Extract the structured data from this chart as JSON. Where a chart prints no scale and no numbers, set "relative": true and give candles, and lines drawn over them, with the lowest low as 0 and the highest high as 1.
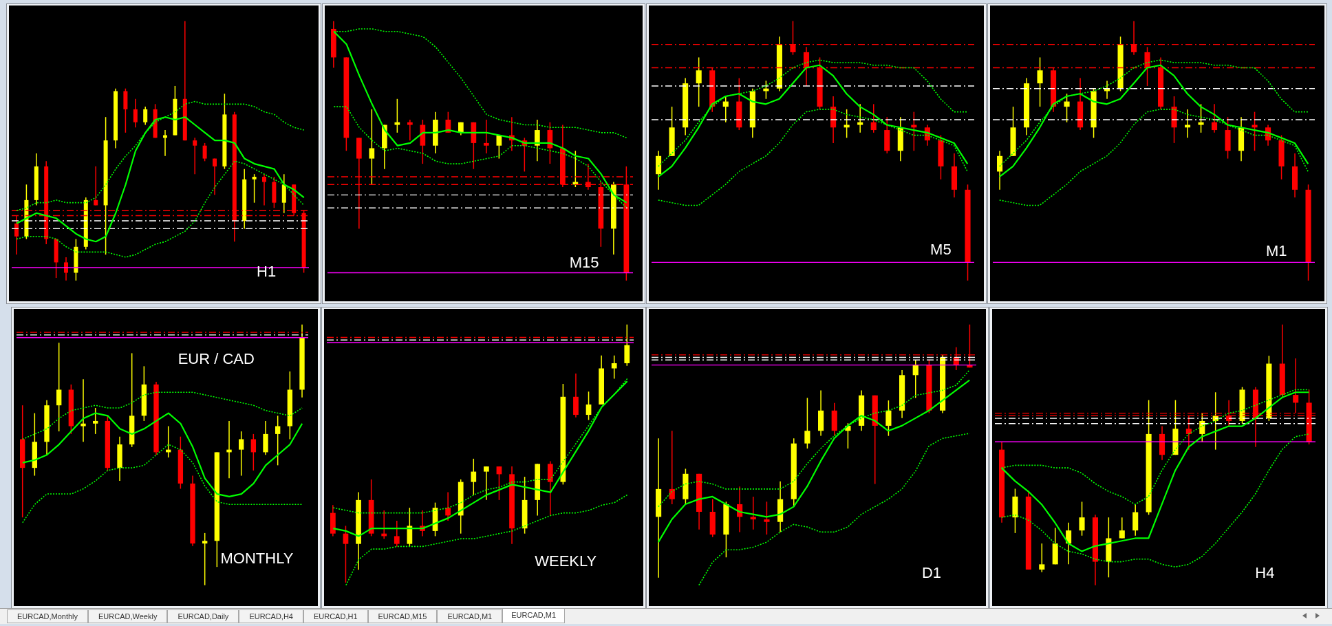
{
  "chart_data": [
    {
      "type": "candlestick",
      "title": "H1",
      "relative": true,
      "tick_labels": false,
      "categories": [
        null,
        null,
        null,
        null,
        null,
        null,
        null,
        null,
        null,
        null,
        null,
        null,
        null,
        null,
        null,
        null,
        null,
        null,
        null,
        null,
        null,
        null,
        null,
        null,
        null,
        null,
        null,
        null,
        null,
        null
      ],
      "ohlc": [
        [
          0.22,
          0.25,
          0.1,
          0.17
        ],
        [
          0.17,
          0.37,
          0.16,
          0.31
        ],
        [
          0.31,
          0.49,
          0.29,
          0.44
        ],
        [
          0.44,
          0.46,
          0.14,
          0.16
        ],
        [
          0.16,
          0.16,
          0.01,
          0.07
        ],
        [
          0.07,
          0.09,
          0,
          0.03
        ],
        [
          0.03,
          0.16,
          0,
          0.13
        ],
        [
          0.13,
          0.32,
          0.12,
          0.31
        ],
        [
          0.31,
          0.44,
          0.29,
          0.29
        ],
        [
          0.29,
          0.63,
          0.1,
          0.54
        ],
        [
          0.54,
          0.74,
          0.51,
          0.73
        ],
        [
          0.73,
          0.74,
          0.57,
          0.66
        ],
        [
          0.66,
          0.7,
          0.59,
          0.61
        ],
        [
          0.61,
          0.67,
          0.6,
          0.66
        ],
        [
          0.66,
          0.68,
          0.55,
          0.55
        ],
        [
          0.55,
          0.58,
          0.48,
          0.56
        ],
        [
          0.56,
          0.75,
          0.56,
          0.7
        ],
        [
          0.7,
          1,
          0.54,
          0.54
        ],
        [
          0.54,
          0.55,
          0.41,
          0.52
        ],
        [
          0.52,
          0.53,
          0.46,
          0.47
        ],
        [
          0.47,
          0.47,
          0.33,
          0.44
        ],
        [
          0.44,
          0.72,
          0.43,
          0.64
        ],
        [
          0.64,
          0.65,
          0.15,
          0.23
        ],
        [
          0.23,
          0.43,
          0.2,
          0.39
        ],
        [
          0.39,
          0.41,
          0.3,
          0.4
        ],
        [
          0.4,
          0.41,
          0.29,
          0.38
        ],
        [
          0.38,
          0.4,
          0.28,
          0.3
        ],
        [
          0.3,
          0.41,
          0.26,
          0.37
        ],
        [
          0.37,
          0.37,
          0.25,
          0.26
        ],
        [
          0.26,
          0.27,
          0.03,
          0.05
        ]
      ],
      "series": [
        {
          "type": "line",
          "color": "#00ff00",
          "values": [
            0.22,
            0.24,
            0.26,
            0.25,
            0.24,
            0.21,
            0.18,
            0.16,
            0.15,
            0.17,
            0.26,
            0.37,
            0.5,
            0.57,
            0.62,
            0.63,
            0.62,
            0.63,
            0.6,
            0.57,
            0.54,
            0.54,
            0.53,
            0.47,
            0.45,
            0.44,
            0.43,
            0.37,
            0.35,
            0.32
          ]
        },
        {
          "type": "line",
          "color": "#00ff00",
          "line_style": "dotted",
          "values": [
            0.27,
            0.28,
            0.3,
            0.3,
            0.31,
            0.3,
            0.3,
            0.3,
            0.32,
            0.37,
            0.43,
            0.48,
            0.52,
            0.57,
            0.61,
            0.63,
            0.65,
            0.68,
            0.69,
            0.68,
            0.68,
            0.68,
            0.68,
            0.68,
            0.67,
            0.65,
            0.64,
            0.61,
            0.59,
            0.58
          ]
        },
        {
          "type": "line",
          "color": "#00ff00",
          "line_style": "dotted",
          "values": [
            0.16,
            0.17,
            0.17,
            0.17,
            0.16,
            0.13,
            0.11,
            0.11,
            0.11,
            0.11,
            0.1,
            0.09,
            0.1,
            0.12,
            0.14,
            0.15,
            0.17,
            0.19,
            0.23,
            0.3,
            0.36,
            0.41,
            0.46,
            0.45,
            0.43,
            0.41,
            0.39,
            0.37,
            0.33,
            0.29
          ]
        }
      ],
      "ref_lines": [
        {
          "axis": "y",
          "value": 0.27,
          "color": "#ff0000",
          "line_style": "dashdot"
        },
        {
          "axis": "y",
          "value": 0.25,
          "color": "#ff0000",
          "line_style": "dashdot"
        },
        {
          "axis": "y",
          "value": 0.23,
          "color": "#ffffff",
          "line_style": "dashdot"
        },
        {
          "axis": "y",
          "value": 0.2,
          "color": "#ffffff",
          "line_style": "dashdot"
        },
        {
          "axis": "y",
          "value": 0.05,
          "color": "#ff00ff",
          "line_style": "solid"
        }
      ]
    },
    {
      "type": "candlestick",
      "title": "M15",
      "relative": true,
      "tick_labels": false,
      "categories": [
        null,
        null,
        null,
        null,
        null,
        null,
        null,
        null,
        null,
        null,
        null,
        null,
        null,
        null,
        null,
        null,
        null,
        null,
        null,
        null,
        null,
        null,
        null,
        null
      ],
      "ohlc": [
        [
          0.97,
          1,
          0.82,
          0.86
        ],
        [
          0.86,
          0.86,
          0.5,
          0.55
        ],
        [
          0.55,
          0.55,
          0.2,
          0.47
        ],
        [
          0.47,
          0.66,
          0.37,
          0.51
        ],
        [
          0.51,
          0.6,
          0.43,
          0.6
        ],
        [
          0.6,
          0.7,
          0.57,
          0.61
        ],
        [
          0.61,
          0.62,
          0.54,
          0.6
        ],
        [
          0.6,
          0.62,
          0.45,
          0.52
        ],
        [
          0.52,
          0.65,
          0.49,
          0.62
        ],
        [
          0.62,
          0.65,
          0.57,
          0.57
        ],
        [
          0.57,
          0.61,
          0.56,
          0.61
        ],
        [
          0.61,
          0.61,
          0.43,
          0.53
        ],
        [
          0.53,
          0.62,
          0.49,
          0.52
        ],
        [
          0.52,
          0.56,
          0.47,
          0.56
        ],
        [
          0.56,
          0.63,
          0.5,
          0.54
        ],
        [
          0.54,
          0.55,
          0.42,
          0.52
        ],
        [
          0.52,
          0.62,
          0.46,
          0.58
        ],
        [
          0.58,
          0.61,
          0.45,
          0.51
        ],
        [
          0.51,
          0.6,
          0.36,
          0.37
        ],
        [
          0.37,
          0.5,
          0.36,
          0.38
        ],
        [
          0.38,
          0.45,
          0.35,
          0.36
        ],
        [
          0.36,
          0.38,
          0.13,
          0.2
        ],
        [
          0.2,
          0.38,
          0.1,
          0.37
        ],
        [
          0.37,
          0.44,
          0,
          0.03
        ]
      ],
      "series": [
        {
          "type": "line",
          "color": "#00ff00",
          "values": [
            0.96,
            0.91,
            0.79,
            0.68,
            0.58,
            0.52,
            0.53,
            0.57,
            0.57,
            0.58,
            0.57,
            0.57,
            0.57,
            0.56,
            0.55,
            0.53,
            0.53,
            0.53,
            0.51,
            0.48,
            0.47,
            0.41,
            0.33,
            0.3
          ]
        },
        {
          "type": "line",
          "color": "#00ff00",
          "line_style": "dotted",
          "values": [
            0.96,
            0.96,
            0.97,
            0.97,
            0.96,
            0.96,
            0.95,
            0.94,
            0.9,
            0.84,
            0.78,
            0.71,
            0.64,
            0.62,
            0.61,
            0.6,
            0.6,
            0.59,
            0.59,
            0.59,
            0.58,
            0.57,
            0.57,
            0.55
          ]
        },
        {
          "type": "line",
          "color": "#00ff00",
          "line_style": "dotted",
          "values": [
            0.67,
            0.67,
            0.59,
            0.54,
            0.5,
            0.51,
            0.5,
            0.49,
            0.46,
            0.45,
            0.45,
            0.46,
            0.47,
            0.48,
            0.52,
            0.52,
            0.51,
            0.5,
            0.49,
            0.47,
            0.44,
            0.38,
            0.33,
            0.28
          ]
        }
      ],
      "ref_lines": [
        {
          "axis": "y",
          "value": 0.4,
          "color": "#ff0000",
          "line_style": "dashdot"
        },
        {
          "axis": "y",
          "value": 0.37,
          "color": "#ff0000",
          "line_style": "dashdot"
        },
        {
          "axis": "y",
          "value": 0.33,
          "color": "#ffffff",
          "line_style": "dashdot"
        },
        {
          "axis": "y",
          "value": 0.28,
          "color": "#ffffff",
          "line_style": "dashdot"
        },
        {
          "axis": "y",
          "value": 0.03,
          "color": "#ff00ff",
          "line_style": "solid"
        }
      ]
    },
    {
      "type": "candlestick",
      "title": "M5",
      "relative": true,
      "tick_labels": false,
      "categories": [
        null,
        null,
        null,
        null,
        null,
        null,
        null,
        null,
        null,
        null,
        null,
        null,
        null,
        null,
        null,
        null,
        null,
        null,
        null,
        null,
        null,
        null,
        null,
        null
      ],
      "ohlc": [
        [
          0.41,
          0.5,
          0.35,
          0.48
        ],
        [
          0.48,
          0.67,
          0.48,
          0.59
        ],
        [
          0.59,
          0.78,
          0.56,
          0.76
        ],
        [
          0.76,
          0.86,
          0.67,
          0.81
        ],
        [
          0.81,
          0.82,
          0.65,
          0.67
        ],
        [
          0.67,
          0.71,
          0.61,
          0.69
        ],
        [
          0.69,
          0.78,
          0.58,
          0.59
        ],
        [
          0.59,
          0.74,
          0.55,
          0.73
        ],
        [
          0.73,
          0.77,
          0.7,
          0.74
        ],
        [
          0.74,
          0.94,
          0.73,
          0.91
        ],
        [
          0.91,
          1,
          0.87,
          0.88
        ],
        [
          0.88,
          0.9,
          0.75,
          0.82
        ],
        [
          0.82,
          0.86,
          0.66,
          0.67
        ],
        [
          0.67,
          0.71,
          0.53,
          0.59
        ],
        [
          0.59,
          0.66,
          0.55,
          0.6
        ],
        [
          0.6,
          0.68,
          0.57,
          0.61
        ],
        [
          0.61,
          0.68,
          0.57,
          0.58
        ],
        [
          0.58,
          0.63,
          0.49,
          0.5
        ],
        [
          0.5,
          0.63,
          0.46,
          0.59
        ],
        [
          0.6,
          0.65,
          0.5,
          0.59
        ],
        [
          0.59,
          0.6,
          0.52,
          0.54
        ],
        [
          0.54,
          0.56,
          0.39,
          0.44
        ],
        [
          0.44,
          0.49,
          0.32,
          0.35
        ],
        [
          0.35,
          0.37,
          0,
          0.07
        ]
      ],
      "series": [
        {
          "type": "line",
          "color": "#00ff00",
          "values": [
            0.4,
            0.44,
            0.51,
            0.59,
            0.68,
            0.71,
            0.72,
            0.69,
            0.68,
            0.7,
            0.76,
            0.82,
            0.83,
            0.79,
            0.72,
            0.67,
            0.64,
            0.6,
            0.59,
            0.58,
            0.57,
            0.55,
            0.53,
            0.45
          ]
        },
        {
          "type": "line",
          "color": "#00ff00",
          "line_style": "dotted",
          "values": [
            0.44,
            0.49,
            0.54,
            0.61,
            0.67,
            0.71,
            0.72,
            0.73,
            0.75,
            0.78,
            0.82,
            0.84,
            0.85,
            0.84,
            0.84,
            0.84,
            0.83,
            0.83,
            0.82,
            0.82,
            0.77,
            0.7,
            0.65,
            0.65
          ]
        },
        {
          "type": "line",
          "color": "#00ff00",
          "line_style": "dotted",
          "values": [
            0.31,
            0.3,
            0.29,
            0.29,
            0.33,
            0.37,
            0.42,
            0.45,
            0.48,
            0.53,
            0.6,
            0.65,
            0.66,
            0.66,
            0.64,
            0.63,
            0.62,
            0.6,
            0.58,
            0.56,
            0.56,
            0.54,
            0.52,
            0.42
          ]
        }
      ],
      "ref_lines": [
        {
          "axis": "y",
          "value": 0.91,
          "color": "#ff0000",
          "line_style": "dashdot"
        },
        {
          "axis": "y",
          "value": 0.82,
          "color": "#ff0000",
          "line_style": "dashdot"
        },
        {
          "axis": "y",
          "value": 0.75,
          "color": "#ffffff",
          "line_style": "dashdot"
        },
        {
          "axis": "y",
          "value": 0.62,
          "color": "#ffffff",
          "line_style": "dashdot"
        },
        {
          "axis": "y",
          "value": 0.07,
          "color": "#ff00ff",
          "line_style": "solid"
        }
      ]
    },
    {
      "type": "candlestick",
      "title": "M1",
      "relative": true,
      "tick_labels": false,
      "categories": [
        null,
        null,
        null,
        null,
        null,
        null,
        null,
        null,
        null,
        null,
        null,
        null,
        null,
        null,
        null,
        null,
        null,
        null,
        null,
        null,
        null,
        null,
        null,
        null
      ],
      "ohlc": [
        [
          0.42,
          0.5,
          0.35,
          0.48
        ],
        [
          0.48,
          0.67,
          0.48,
          0.59
        ],
        [
          0.59,
          0.78,
          0.56,
          0.76
        ],
        [
          0.76,
          0.86,
          0.67,
          0.81
        ],
        [
          0.81,
          0.82,
          0.65,
          0.67
        ],
        [
          0.67,
          0.72,
          0.61,
          0.69
        ],
        [
          0.69,
          0.78,
          0.58,
          0.59
        ],
        [
          0.59,
          0.74,
          0.55,
          0.73
        ],
        [
          0.73,
          0.77,
          0.7,
          0.74
        ],
        [
          0.74,
          0.94,
          0.73,
          0.91
        ],
        [
          0.91,
          1,
          0.87,
          0.88
        ],
        [
          0.88,
          0.9,
          0.75,
          0.82
        ],
        [
          0.82,
          0.86,
          0.66,
          0.67
        ],
        [
          0.67,
          0.71,
          0.53,
          0.59
        ],
        [
          0.59,
          0.66,
          0.55,
          0.6
        ],
        [
          0.6,
          0.68,
          0.57,
          0.61
        ],
        [
          0.61,
          0.68,
          0.57,
          0.58
        ],
        [
          0.58,
          0.63,
          0.47,
          0.5
        ],
        [
          0.5,
          0.63,
          0.46,
          0.59
        ],
        [
          0.6,
          0.65,
          0.5,
          0.59
        ],
        [
          0.59,
          0.6,
          0.52,
          0.54
        ],
        [
          0.54,
          0.56,
          0.39,
          0.44
        ],
        [
          0.44,
          0.49,
          0.32,
          0.35
        ],
        [
          0.35,
          0.37,
          0,
          0.07
        ]
      ],
      "series": [
        {
          "type": "line",
          "color": "#00ff00",
          "values": [
            0.4,
            0.44,
            0.51,
            0.59,
            0.68,
            0.71,
            0.72,
            0.69,
            0.68,
            0.7,
            0.76,
            0.82,
            0.83,
            0.79,
            0.72,
            0.67,
            0.64,
            0.6,
            0.59,
            0.58,
            0.57,
            0.55,
            0.53,
            0.45
          ]
        },
        {
          "type": "line",
          "color": "#00ff00",
          "line_style": "dotted",
          "values": [
            0.44,
            0.49,
            0.54,
            0.61,
            0.67,
            0.71,
            0.72,
            0.73,
            0.75,
            0.78,
            0.82,
            0.84,
            0.85,
            0.84,
            0.84,
            0.84,
            0.83,
            0.83,
            0.82,
            0.82,
            0.77,
            0.7,
            0.65,
            0.65
          ]
        },
        {
          "type": "line",
          "color": "#00ff00",
          "line_style": "dotted",
          "values": [
            0.31,
            0.3,
            0.29,
            0.29,
            0.33,
            0.37,
            0.42,
            0.45,
            0.48,
            0.53,
            0.6,
            0.65,
            0.66,
            0.66,
            0.64,
            0.63,
            0.62,
            0.6,
            0.58,
            0.56,
            0.56,
            0.54,
            0.52,
            0.42
          ]
        }
      ],
      "ref_lines": [
        {
          "axis": "y",
          "value": 0.91,
          "color": "#ff0000",
          "line_style": "dashdot"
        },
        {
          "axis": "y",
          "value": 0.82,
          "color": "#ff0000",
          "line_style": "dashdot"
        },
        {
          "axis": "y",
          "value": 0.74,
          "color": "#ffffff",
          "line_style": "dashdot"
        },
        {
          "axis": "y",
          "value": 0.62,
          "color": "#ffffff",
          "line_style": "dashdot"
        },
        {
          "axis": "y",
          "value": 0.07,
          "color": "#ff00ff",
          "line_style": "solid"
        }
      ]
    },
    {
      "type": "candlestick",
      "title": "MONTHLY",
      "annotations": [
        "EUR / CAD"
      ],
      "relative": true,
      "tick_labels": false,
      "categories": [
        null,
        null,
        null,
        null,
        null,
        null,
        null,
        null,
        null,
        null,
        null,
        null,
        null,
        null,
        null,
        null,
        null,
        null,
        null,
        null,
        null,
        null,
        null,
        null
      ],
      "ohlc": [
        [
          0.56,
          0.69,
          0.26,
          0.45
        ],
        [
          0.45,
          0.66,
          0.42,
          0.55
        ],
        [
          0.55,
          0.71,
          0.5,
          0.69
        ],
        [
          0.69,
          0.93,
          0.59,
          0.75
        ],
        [
          0.75,
          0.77,
          0.58,
          0.61
        ],
        [
          0.61,
          0.79,
          0.55,
          0.62
        ],
        [
          0.62,
          0.68,
          0.58,
          0.63
        ],
        [
          0.63,
          0.65,
          0.44,
          0.45
        ],
        [
          0.45,
          0.57,
          0.4,
          0.54
        ],
        [
          0.54,
          0.89,
          0.53,
          0.65
        ],
        [
          0.65,
          0.84,
          0.63,
          0.77
        ],
        [
          0.77,
          0.78,
          0.5,
          0.51
        ],
        [
          0.51,
          0.61,
          0.49,
          0.52
        ],
        [
          0.52,
          0.57,
          0.37,
          0.39
        ],
        [
          0.39,
          0.42,
          0.15,
          0.16
        ],
        [
          0.16,
          0.2,
          0,
          0.17
        ],
        [
          0.17,
          0.51,
          0.07,
          0.51
        ],
        [
          0.51,
          0.63,
          0.41,
          0.52
        ],
        [
          0.52,
          0.59,
          0.42,
          0.56
        ],
        [
          0.56,
          0.58,
          0.44,
          0.51
        ],
        [
          0.51,
          0.63,
          0.5,
          0.58
        ],
        [
          0.58,
          0.65,
          0.46,
          0.61
        ],
        [
          0.61,
          0.82,
          0.56,
          0.75
        ],
        [
          0.75,
          1,
          0.72,
          0.95
        ]
      ],
      "series": [
        {
          "type": "line",
          "color": "#00ff00",
          "values": [
            0.47,
            0.48,
            0.5,
            0.54,
            0.59,
            0.64,
            0.66,
            0.65,
            0.6,
            0.58,
            0.6,
            0.63,
            0.66,
            0.62,
            0.53,
            0.41,
            0.35,
            0.34,
            0.35,
            0.39,
            0.46,
            0.5,
            0.54,
            0.62
          ]
        },
        {
          "type": "line",
          "color": "#00ff00",
          "line_style": "dotted",
          "values": [
            0.56,
            0.58,
            0.6,
            0.64,
            0.67,
            0.68,
            0.69,
            0.68,
            0.68,
            0.7,
            0.73,
            0.74,
            0.74,
            0.74,
            0.74,
            0.73,
            0.72,
            0.71,
            0.7,
            0.69,
            0.67,
            0.66,
            0.65,
            0.68
          ]
        },
        {
          "type": "line",
          "color": "#00ff00",
          "line_style": "dotted",
          "values": [
            0.24,
            0.31,
            0.35,
            0.35,
            0.35,
            0.37,
            0.4,
            0.44,
            0.45,
            0.45,
            0.46,
            0.5,
            0.54,
            0.52,
            0.47,
            0.38,
            0.32,
            0.31,
            0.31,
            0.31,
            0.31,
            0.31,
            0.31,
            0.31
          ]
        }
      ],
      "ref_lines": [
        {
          "axis": "y",
          "value": 0.97,
          "color": "#ff0000",
          "line_style": "dashdot"
        },
        {
          "axis": "y",
          "value": 0.96,
          "color": "#ffffff",
          "line_style": "dashdot"
        },
        {
          "axis": "y",
          "value": 0.95,
          "color": "#ff00ff",
          "line_style": "solid"
        }
      ]
    },
    {
      "type": "candlestick",
      "title": "WEEKLY",
      "relative": true,
      "tick_labels": false,
      "categories": [
        null,
        null,
        null,
        null,
        null,
        null,
        null,
        null,
        null,
        null,
        null,
        null,
        null,
        null,
        null,
        null,
        null,
        null,
        null,
        null,
        null,
        null,
        null,
        null
      ],
      "ohlc": [
        [
          0.27,
          0.3,
          0.18,
          0.19
        ],
        [
          0.19,
          0.22,
          0,
          0.15
        ],
        [
          0.15,
          0.35,
          0.05,
          0.32
        ],
        [
          0.32,
          0.4,
          0.18,
          0.19
        ],
        [
          0.19,
          0.28,
          0.17,
          0.18
        ],
        [
          0.18,
          0.24,
          0.14,
          0.15
        ],
        [
          0.15,
          0.29,
          0.14,
          0.22
        ],
        [
          0.22,
          0.28,
          0.18,
          0.2
        ],
        [
          0.2,
          0.31,
          0.18,
          0.29
        ],
        [
          0.29,
          0.35,
          0.24,
          0.26
        ],
        [
          0.26,
          0.4,
          0.19,
          0.39
        ],
        [
          0.39,
          0.48,
          0.34,
          0.43
        ],
        [
          0.43,
          0.45,
          0.32,
          0.45
        ],
        [
          0.45,
          0.45,
          0.32,
          0.42
        ],
        [
          0.42,
          0.45,
          0.15,
          0.21
        ],
        [
          0.21,
          0.41,
          0.19,
          0.32
        ],
        [
          0.32,
          0.46,
          0.26,
          0.46
        ],
        [
          0.46,
          0.47,
          0.26,
          0.39
        ],
        [
          0.39,
          0.77,
          0.38,
          0.72
        ],
        [
          0.72,
          0.81,
          0.64,
          0.65
        ],
        [
          0.65,
          0.74,
          0.63,
          0.69
        ],
        [
          0.69,
          0.88,
          0.69,
          0.83
        ],
        [
          0.83,
          0.88,
          0.79,
          0.85
        ],
        [
          0.85,
          1,
          0.84,
          0.92
        ]
      ],
      "series": [
        {
          "type": "line",
          "color": "#00ff00",
          "values": [
            0.21,
            0.2,
            0.18,
            0.21,
            0.21,
            0.21,
            0.21,
            0.21,
            0.23,
            0.25,
            0.28,
            0.31,
            0.34,
            0.36,
            0.38,
            0.37,
            0.36,
            0.35,
            0.43,
            0.51,
            0.59,
            0.68,
            0.73,
            0.78
          ]
        },
        {
          "type": "line",
          "color": "#00ff00",
          "line_style": "dotted",
          "values": [
            0.29,
            0.28,
            0.27,
            0.27,
            0.27,
            0.27,
            0.27,
            0.27,
            0.28,
            0.29,
            0.31,
            0.34,
            0.36,
            0.37,
            0.39,
            0.39,
            0.4,
            0.4,
            0.47,
            0.54,
            0.61,
            0.68,
            0.73,
            0.79
          ]
        },
        {
          "type": "line",
          "color": "#00ff00",
          "line_style": "dotted",
          "values": [
            null,
            -0.01,
            0.09,
            0.13,
            0.13,
            0.14,
            0.14,
            0.14,
            0.15,
            0.16,
            0.17,
            0.17,
            0.18,
            0.19,
            0.2,
            0.22,
            0.24,
            0.26,
            0.27,
            0.27,
            0.28,
            0.3,
            0.31,
            0.34
          ]
        }
      ],
      "ref_lines": [
        {
          "axis": "y",
          "value": 0.95,
          "color": "#ff0000",
          "line_style": "dashdot"
        },
        {
          "axis": "y",
          "value": 0.94,
          "color": "#ffffff",
          "line_style": "dashdot"
        },
        {
          "axis": "y",
          "value": 0.93,
          "color": "#ff00ff",
          "line_style": "solid"
        }
      ]
    },
    {
      "type": "candlestick",
      "title": "D1",
      "relative": true,
      "tick_labels": false,
      "categories": [
        null,
        null,
        null,
        null,
        null,
        null,
        null,
        null,
        null,
        null,
        null,
        null,
        null,
        null,
        null,
        null,
        null,
        null,
        null,
        null,
        null,
        null,
        null,
        null
      ],
      "ohlc": [
        [
          0.24,
          0.55,
          0,
          0.35
        ],
        [
          0.35,
          0.58,
          0.29,
          0.31
        ],
        [
          0.31,
          0.43,
          0.29,
          0.41
        ],
        [
          0.41,
          0.41,
          0.19,
          0.26
        ],
        [
          0.26,
          0.31,
          0.16,
          0.17
        ],
        [
          0.17,
          0.3,
          0.08,
          0.29
        ],
        [
          0.29,
          0.36,
          0.18,
          0.24
        ],
        [
          0.24,
          0.32,
          0.19,
          0.23
        ],
        [
          0.23,
          0.3,
          0.17,
          0.22
        ],
        [
          0.22,
          0.38,
          0.18,
          0.31
        ],
        [
          0.31,
          0.55,
          0.28,
          0.53
        ],
        [
          0.53,
          0.71,
          0.51,
          0.58
        ],
        [
          0.58,
          0.74,
          0.56,
          0.66
        ],
        [
          0.66,
          0.69,
          0.56,
          0.58
        ],
        [
          0.58,
          0.61,
          0.51,
          0.6
        ],
        [
          0.6,
          0.74,
          0.58,
          0.72
        ],
        [
          0.72,
          0.72,
          0.37,
          0.6
        ],
        [
          0.6,
          0.7,
          0.56,
          0.66
        ],
        [
          0.66,
          0.82,
          0.63,
          0.8
        ],
        [
          0.8,
          0.86,
          0.71,
          0.84
        ],
        [
          0.84,
          0.86,
          0.65,
          0.66
        ],
        [
          0.66,
          0.88,
          0.65,
          0.87
        ],
        [
          0.87,
          0.91,
          0.82,
          0.84
        ],
        [
          0.84,
          1,
          0.83,
          0.83
        ]
      ],
      "series": [
        {
          "type": "line",
          "color": "#00ff00",
          "values": [
            0.14,
            0.23,
            0.29,
            0.31,
            0.32,
            0.29,
            0.26,
            0.25,
            0.24,
            0.25,
            0.28,
            0.36,
            0.46,
            0.55,
            0.6,
            0.64,
            0.62,
            0.58,
            0.6,
            0.63,
            0.66,
            0.7,
            0.74,
            0.78
          ]
        },
        {
          "type": "line",
          "color": "#00ff00",
          "line_style": "dotted",
          "values": [
            0.28,
            0.34,
            0.37,
            0.38,
            0.37,
            0.35,
            0.35,
            0.35,
            0.35,
            0.35,
            0.38,
            0.45,
            0.51,
            0.56,
            0.6,
            0.63,
            0.65,
            0.66,
            0.68,
            0.72,
            0.73,
            0.74,
            0.76,
            0.82
          ]
        },
        {
          "type": "line",
          "color": "#00ff00",
          "line_style": "dotted",
          "values": [
            null,
            null,
            null,
            -0.03,
            0.06,
            0.11,
            0.11,
            0.12,
            0.14,
            0.18,
            0.21,
            0.2,
            0.18,
            0.18,
            0.2,
            0.25,
            0.28,
            0.31,
            0.35,
            0.42,
            0.52,
            0.55,
            0.56,
            0.57
          ]
        }
      ],
      "ref_lines": [
        {
          "axis": "y",
          "value": 0.88,
          "color": "#ff0000",
          "line_style": "dashdot"
        },
        {
          "axis": "y",
          "value": 0.87,
          "color": "#ffffff",
          "line_style": "dashdot"
        },
        {
          "axis": "y",
          "value": 0.86,
          "color": "#ffffff",
          "line_style": "dashdot"
        },
        {
          "axis": "y",
          "value": 0.84,
          "color": "#ff00ff",
          "line_style": "solid"
        }
      ]
    },
    {
      "type": "candlestick",
      "title": "H4",
      "relative": true,
      "tick_labels": false,
      "categories": [
        null,
        null,
        null,
        null,
        null,
        null,
        null,
        null,
        null,
        null,
        null,
        null,
        null,
        null,
        null,
        null,
        null,
        null,
        null,
        null,
        null,
        null,
        null,
        null
      ],
      "ohlc": [
        [
          0.52,
          0.55,
          0.24,
          0.26
        ],
        [
          0.26,
          0.37,
          0.2,
          0.34
        ],
        [
          0.34,
          0.36,
          0.06,
          0.06
        ],
        [
          0.06,
          0.16,
          0.05,
          0.08
        ],
        [
          0.08,
          0.22,
          0.08,
          0.16
        ],
        [
          0.16,
          0.24,
          0.08,
          0.21
        ],
        [
          0.21,
          0.32,
          0.19,
          0.26
        ],
        [
          0.26,
          0.27,
          0,
          0.09
        ],
        [
          0.09,
          0.26,
          0.03,
          0.18
        ],
        [
          0.18,
          0.26,
          0.18,
          0.21
        ],
        [
          0.21,
          0.31,
          0.19,
          0.28
        ],
        [
          0.28,
          0.71,
          0.27,
          0.58
        ],
        [
          0.58,
          0.61,
          0.48,
          0.5
        ],
        [
          0.5,
          0.71,
          0.5,
          0.6
        ],
        [
          0.6,
          0.65,
          0.52,
          0.58
        ],
        [
          0.58,
          0.66,
          0.55,
          0.63
        ],
        [
          0.63,
          0.74,
          0.52,
          0.65
        ],
        [
          0.65,
          0.71,
          0.61,
          0.63
        ],
        [
          0.63,
          0.76,
          0.62,
          0.75
        ],
        [
          0.75,
          0.76,
          0.53,
          0.64
        ],
        [
          0.64,
          0.88,
          0.63,
          0.85
        ],
        [
          0.85,
          1,
          0.72,
          0.73
        ],
        [
          0.73,
          0.87,
          0.66,
          0.7
        ],
        [
          0.7,
          0.75,
          0.54,
          0.55
        ]
      ],
      "series": [
        {
          "type": "line",
          "color": "#00ff00",
          "values": [
            0.45,
            0.4,
            0.36,
            0.31,
            0.24,
            0.16,
            0.13,
            0.15,
            0.16,
            0.17,
            0.18,
            0.18,
            0.31,
            0.44,
            0.53,
            0.57,
            0.59,
            0.61,
            0.61,
            0.64,
            0.68,
            0.72,
            0.74,
            0.74
          ]
        },
        {
          "type": "line",
          "color": "#00ff00",
          "line_style": "dotted",
          "values": [
            0.45,
            0.46,
            0.46,
            0.46,
            0.45,
            0.45,
            0.43,
            0.39,
            0.36,
            0.34,
            0.31,
            0.34,
            0.44,
            0.52,
            0.58,
            0.61,
            0.63,
            0.66,
            0.67,
            0.69,
            0.71,
            0.73,
            0.75,
            0.75
          ]
        },
        {
          "type": "line",
          "color": "#00ff00",
          "line_style": "dotted",
          "values": [
            0.26,
            0.27,
            0.25,
            0.21,
            0.16,
            0.13,
            0.12,
            0.1,
            0.09,
            0.09,
            0.1,
            0.1,
            0.08,
            0.07,
            0.08,
            0.11,
            0.16,
            0.22,
            0.28,
            0.35,
            0.44,
            0.52,
            0.57,
            0.58
          ]
        }
      ],
      "ref_lines": [
        {
          "axis": "y",
          "value": 0.66,
          "color": "#ff0000",
          "line_style": "dashdot"
        },
        {
          "axis": "y",
          "value": 0.65,
          "color": "#ff0000",
          "line_style": "dashdot"
        },
        {
          "axis": "y",
          "value": 0.64,
          "color": "#ffffff",
          "line_style": "dashdot"
        },
        {
          "axis": "y",
          "value": 0.62,
          "color": "#ffffff",
          "line_style": "dashdot"
        },
        {
          "axis": "y",
          "value": 0.55,
          "color": "#ff00ff",
          "line_style": "solid"
        }
      ]
    },
    {
      "type": "other",
      "annotations": [
        "EURCAD,Monthly",
        "EURCAD,Weekly",
        "EURCAD,Daily",
        "EURCAD,H4",
        "EURCAD,H1",
        "EURCAD,M15",
        "EURCAD,M1",
        "EURCAD,M1"
      ]
    }
  ]
}
